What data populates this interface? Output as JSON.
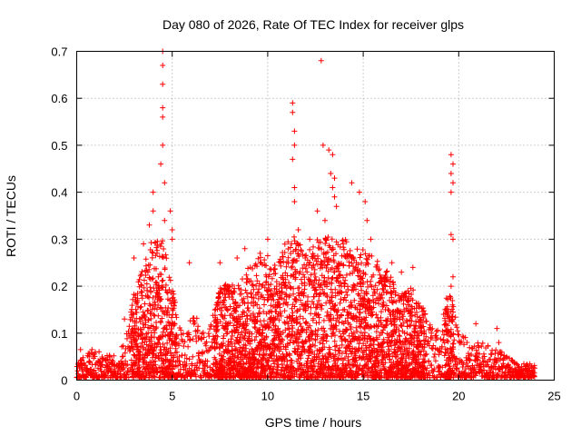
{
  "chart_data": {
    "type": "scatter",
    "title": "Day 080 of 2026, Rate Of TEC Index for receiver glps",
    "xlabel": "GPS time / hours",
    "ylabel": "ROTI / TECUs",
    "xlim": [
      0,
      25
    ],
    "ylim": [
      0,
      0.7
    ],
    "x_ticks": [
      "0",
      "5",
      "10",
      "15",
      "20",
      "25"
    ],
    "y_ticks": [
      "0",
      "0.1",
      "0.2",
      "0.3",
      "0.4",
      "0.5",
      "0.6",
      "0.7"
    ],
    "grid": true,
    "marker": "+",
    "color": "#ff0000",
    "envelope": {
      "x": [
        0,
        0.5,
        1.0,
        1.5,
        2.0,
        2.5,
        3.0,
        3.5,
        4.0,
        4.5,
        5.0,
        5.5,
        6.0,
        6.5,
        7.0,
        7.5,
        8.0,
        8.5,
        9.0,
        9.5,
        10.0,
        10.5,
        11.0,
        11.5,
        12.0,
        12.5,
        13.0,
        13.5,
        14.0,
        14.5,
        15.0,
        15.5,
        16.0,
        16.5,
        17.0,
        17.5,
        18.0,
        18.5,
        19.0,
        19.5,
        20.0,
        20.5,
        21.0,
        21.5,
        22.0,
        22.5,
        23.0,
        23.5,
        24.0
      ],
      "typical_max": [
        0.03,
        0.05,
        0.06,
        0.05,
        0.05,
        0.08,
        0.18,
        0.24,
        0.3,
        0.3,
        0.2,
        0.1,
        0.14,
        0.12,
        0.12,
        0.2,
        0.2,
        0.2,
        0.24,
        0.26,
        0.26,
        0.24,
        0.3,
        0.3,
        0.26,
        0.3,
        0.3,
        0.3,
        0.3,
        0.3,
        0.28,
        0.26,
        0.24,
        0.22,
        0.18,
        0.2,
        0.16,
        0.14,
        0.1,
        0.2,
        0.1,
        0.08,
        0.08,
        0.07,
        0.06,
        0.05,
        0.03,
        0.03,
        0.03
      ]
    },
    "outliers": [
      {
        "x": 0.2,
        "y": 0.065
      },
      {
        "x": 0.8,
        "y": 0.065
      },
      {
        "x": 2.5,
        "y": 0.13
      },
      {
        "x": 3.0,
        "y": 0.26
      },
      {
        "x": 3.5,
        "y": 0.29
      },
      {
        "x": 3.8,
        "y": 0.33
      },
      {
        "x": 4.0,
        "y": 0.36
      },
      {
        "x": 4.0,
        "y": 0.4
      },
      {
        "x": 4.4,
        "y": 0.46
      },
      {
        "x": 4.5,
        "y": 0.5
      },
      {
        "x": 4.5,
        "y": 0.56
      },
      {
        "x": 4.5,
        "y": 0.58
      },
      {
        "x": 4.5,
        "y": 0.63
      },
      {
        "x": 4.5,
        "y": 0.67
      },
      {
        "x": 4.5,
        "y": 0.7
      },
      {
        "x": 4.6,
        "y": 0.42
      },
      {
        "x": 4.6,
        "y": 0.34
      },
      {
        "x": 4.9,
        "y": 0.36
      },
      {
        "x": 5.0,
        "y": 0.32
      },
      {
        "x": 5.0,
        "y": 0.3
      },
      {
        "x": 5.9,
        "y": 0.25
      },
      {
        "x": 7.5,
        "y": 0.25
      },
      {
        "x": 8.4,
        "y": 0.26
      },
      {
        "x": 8.8,
        "y": 0.28
      },
      {
        "x": 9.6,
        "y": 0.27
      },
      {
        "x": 10.0,
        "y": 0.3
      },
      {
        "x": 11.3,
        "y": 0.59
      },
      {
        "x": 11.3,
        "y": 0.57
      },
      {
        "x": 11.4,
        "y": 0.53
      },
      {
        "x": 11.4,
        "y": 0.5
      },
      {
        "x": 11.3,
        "y": 0.47
      },
      {
        "x": 11.4,
        "y": 0.41
      },
      {
        "x": 11.4,
        "y": 0.38
      },
      {
        "x": 11.6,
        "y": 0.32
      },
      {
        "x": 12.2,
        "y": 0.3
      },
      {
        "x": 12.8,
        "y": 0.68
      },
      {
        "x": 12.9,
        "y": 0.5
      },
      {
        "x": 13.2,
        "y": 0.49
      },
      {
        "x": 13.4,
        "y": 0.48
      },
      {
        "x": 13.3,
        "y": 0.44
      },
      {
        "x": 13.5,
        "y": 0.43
      },
      {
        "x": 13.4,
        "y": 0.41
      },
      {
        "x": 13.5,
        "y": 0.39
      },
      {
        "x": 12.6,
        "y": 0.36
      },
      {
        "x": 13.0,
        "y": 0.34
      },
      {
        "x": 13.6,
        "y": 0.37
      },
      {
        "x": 14.4,
        "y": 0.42
      },
      {
        "x": 14.8,
        "y": 0.4
      },
      {
        "x": 15.1,
        "y": 0.38
      },
      {
        "x": 15.2,
        "y": 0.34
      },
      {
        "x": 15.4,
        "y": 0.3
      },
      {
        "x": 16.5,
        "y": 0.25
      },
      {
        "x": 17.0,
        "y": 0.23
      },
      {
        "x": 17.6,
        "y": 0.24
      },
      {
        "x": 19.6,
        "y": 0.48
      },
      {
        "x": 19.7,
        "y": 0.46
      },
      {
        "x": 19.6,
        "y": 0.44
      },
      {
        "x": 19.7,
        "y": 0.42
      },
      {
        "x": 19.6,
        "y": 0.4
      },
      {
        "x": 19.6,
        "y": 0.31
      },
      {
        "x": 19.7,
        "y": 0.3
      },
      {
        "x": 19.7,
        "y": 0.22
      },
      {
        "x": 19.6,
        "y": 0.2
      },
      {
        "x": 20.9,
        "y": 0.12
      },
      {
        "x": 22.0,
        "y": 0.11
      },
      {
        "x": 22.1,
        "y": 0.08
      }
    ]
  }
}
